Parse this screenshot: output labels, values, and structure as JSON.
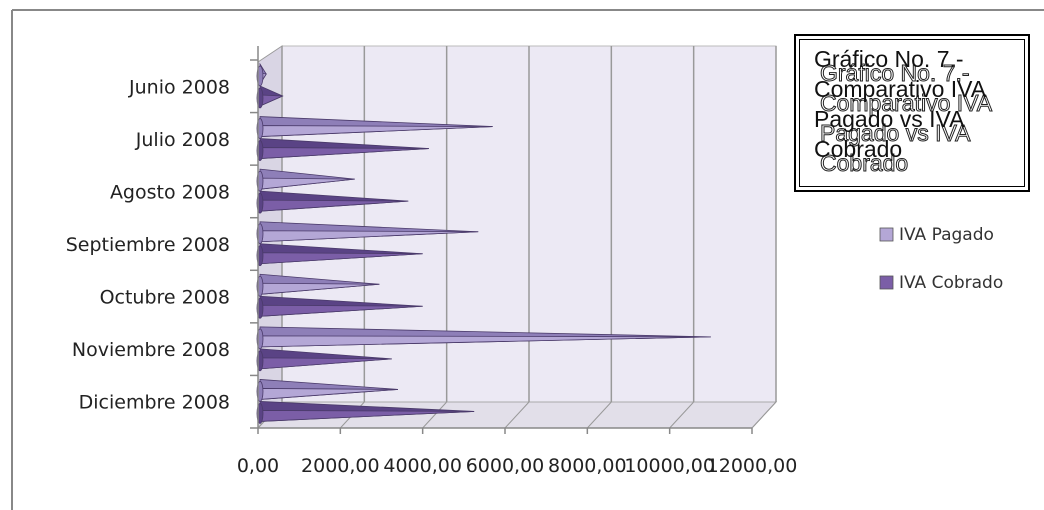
{
  "chart_data": {
    "type": "bar",
    "orientation": "horizontal",
    "style": "3d-cone",
    "title": "Gráfico No. 7.- Comparativo IVA Pagado vs IVA Cobrado",
    "categories": [
      "Junio 2008",
      "Julio 2008",
      "Agosto 2008",
      "Septiembre 2008",
      "Octubre 2008",
      "Noviembre 2008",
      "Diciembre 2008"
    ],
    "series": [
      {
        "name": "IVA Pagado",
        "values": [
          200,
          5700,
          2350,
          5350,
          2950,
          11000,
          3400
        ],
        "color": "#b4a7d6"
      },
      {
        "name": "IVA Cobrado",
        "values": [
          600,
          4150,
          3650,
          4000,
          4000,
          3250,
          5250
        ],
        "color": "#7b5ea7"
      }
    ],
    "x_ticks": [
      "0,00",
      "2000,00",
      "4000,00",
      "6000,00",
      "8000,00",
      "10000,00",
      "12000,00"
    ],
    "xlim": [
      0,
      12000
    ],
    "grid": true,
    "legend_position": "right"
  }
}
